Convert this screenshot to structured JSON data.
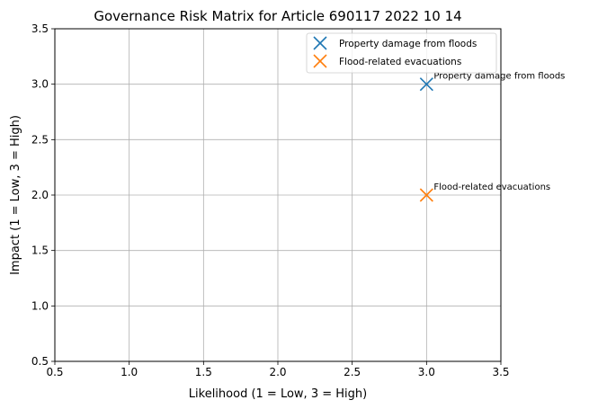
{
  "chart_data": {
    "type": "scatter",
    "title": "Governance Risk Matrix for Article 690117 2022 10 14",
    "xlabel": "Likelihood (1 = Low, 3 = High)",
    "ylabel": "Impact (1 = Low, 3 = High)",
    "xlim": [
      0.5,
      3.5
    ],
    "ylim": [
      0.5,
      3.5
    ],
    "xticks": [
      "0.5",
      "1.0",
      "1.5",
      "2.0",
      "2.5",
      "3.0",
      "3.5"
    ],
    "yticks": [
      "0.5",
      "1.0",
      "1.5",
      "2.0",
      "2.5",
      "3.0",
      "3.5"
    ],
    "grid": true,
    "legend_position": "top-right",
    "marker": "x",
    "series": [
      {
        "name": "Property damage from floods",
        "x": 3,
        "y": 3,
        "color": "#1f77b4",
        "annotation": "Property damage from floods"
      },
      {
        "name": "Flood-related evacuations",
        "x": 3,
        "y": 2,
        "color": "#ff7f0e",
        "annotation": "Flood-related evacuations"
      }
    ]
  }
}
